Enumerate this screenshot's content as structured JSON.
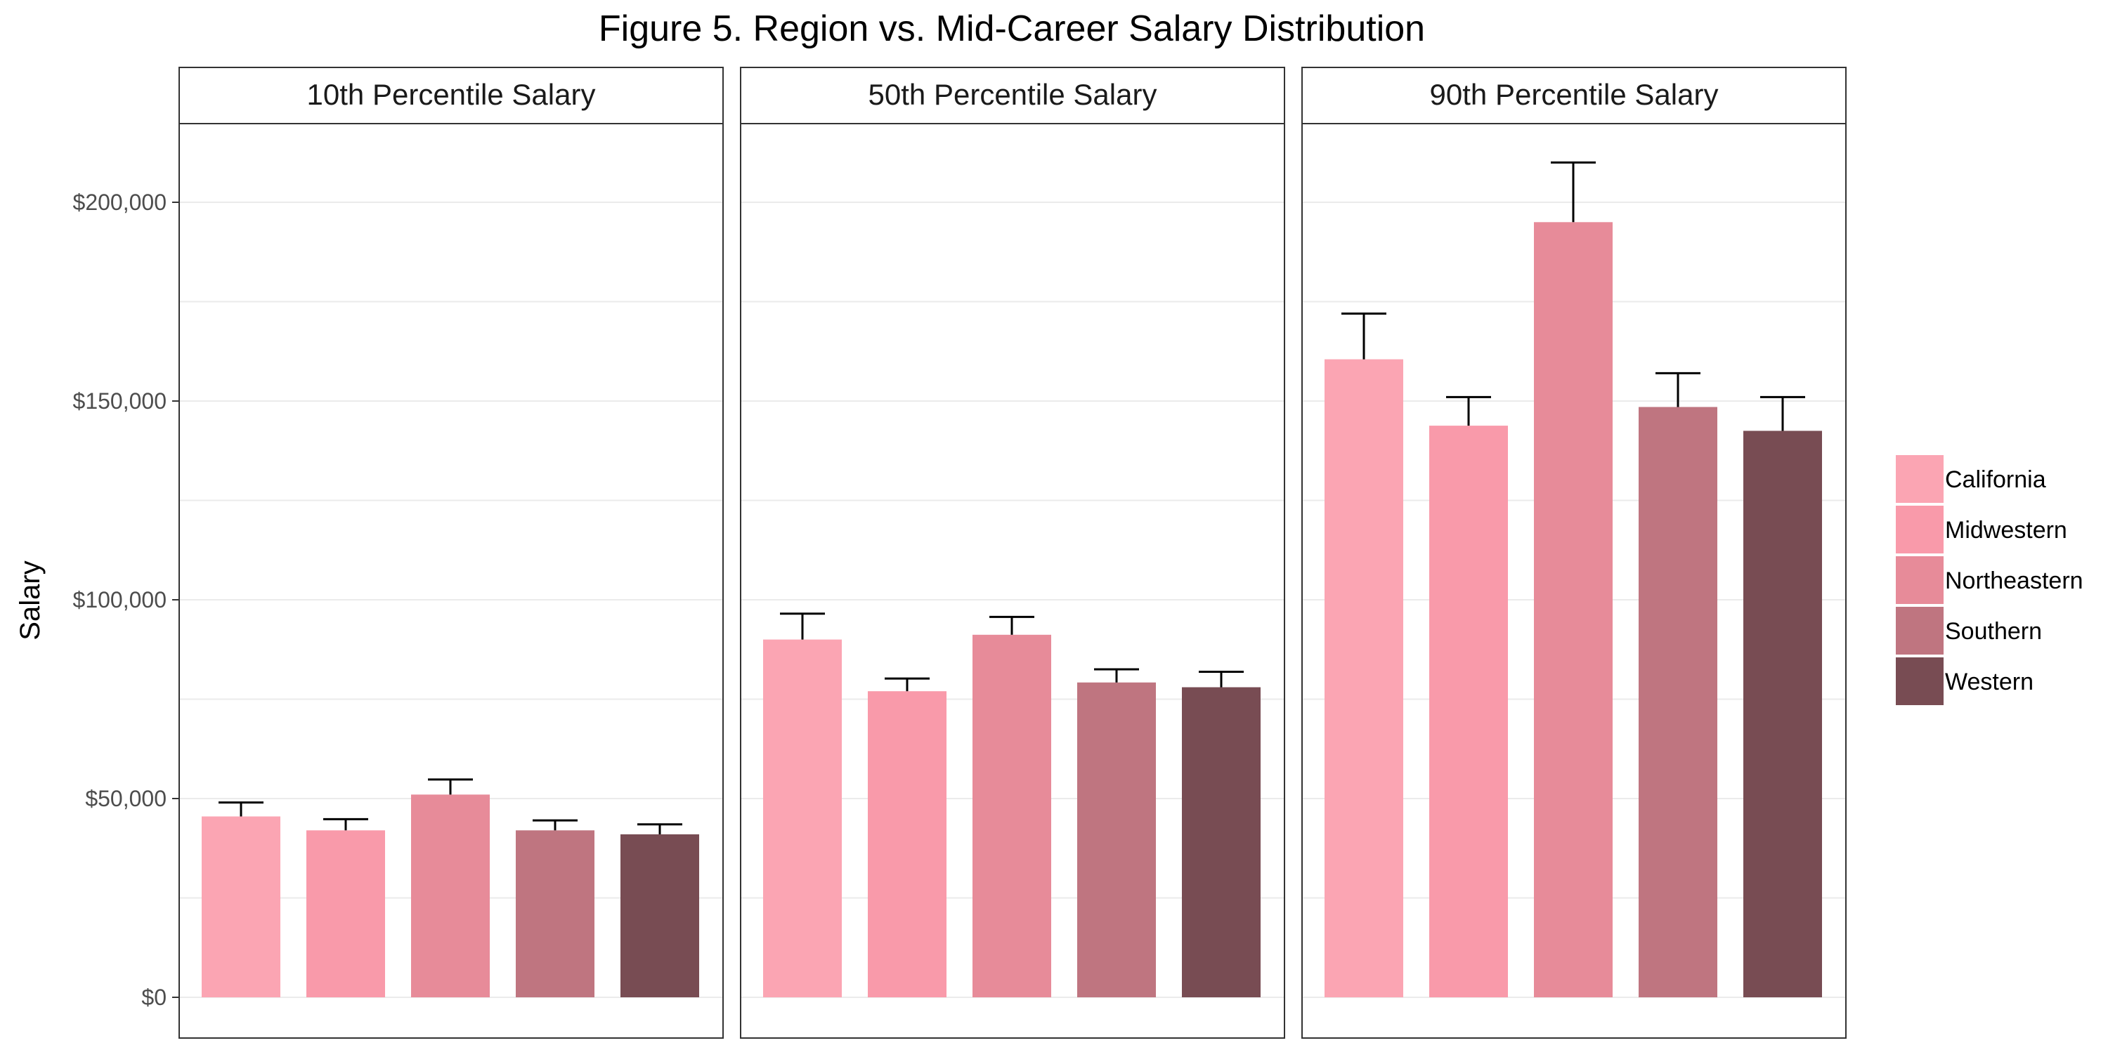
{
  "chart_data": {
    "type": "bar",
    "title": "Figure 5. Region vs. Mid-Career Salary Distribution",
    "ylabel": "Salary",
    "xlabel": "",
    "ylim": [
      0,
      220000
    ],
    "yticks": [
      {
        "value": 0,
        "label": "$0"
      },
      {
        "value": 50000,
        "label": "$50,000"
      },
      {
        "value": 100000,
        "label": "$100,000"
      },
      {
        "value": 150000,
        "label": "$150,000"
      },
      {
        "value": 200000,
        "label": "$200,000"
      }
    ],
    "minor_gridlines": [
      25000,
      75000,
      125000,
      175000
    ],
    "grid": true,
    "legend_position": "right",
    "categories": [
      "California",
      "Midwestern",
      "Northeastern",
      "Southern",
      "Western"
    ],
    "colors": [
      "#FBA5B3",
      "#F99AAA",
      "#E78B99",
      "#BF7580",
      "#784C53"
    ],
    "panels": [
      {
        "title": "10th Percentile Salary",
        "values": [
          45500,
          42000,
          51000,
          42000,
          41000
        ],
        "error_upper": [
          49000,
          44800,
          54800,
          44500,
          43500
        ]
      },
      {
        "title": "50th Percentile Salary",
        "values": [
          90000,
          77000,
          91200,
          79200,
          78000
        ],
        "error_upper": [
          96500,
          80200,
          95700,
          82500,
          81900
        ]
      },
      {
        "title": "90th Percentile Salary",
        "values": [
          160500,
          143800,
          195000,
          148500,
          142500
        ],
        "error_upper": [
          172000,
          151000,
          210000,
          157000,
          151000
        ]
      }
    ]
  }
}
